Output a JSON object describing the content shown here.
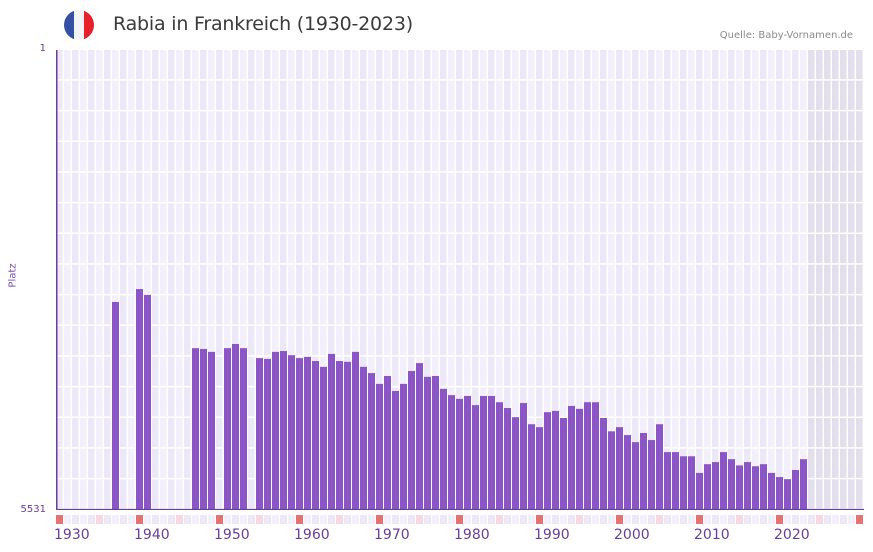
{
  "header": {
    "title": "Rabia in Frankreich (1930-2023)",
    "source": "Quelle: Baby-Vornamen.de",
    "flag_icon": "france-flag-icon",
    "flag_colors": [
      "#3450a3",
      "#f4f4f6",
      "#e8202a"
    ]
  },
  "colors": {
    "bar": "#8b55c8",
    "axis": "#6a3d9a",
    "grid_bg_a": "#f3f0fb",
    "grid_bg_b": "#ece8f7",
    "future_bg": "#e3dfec",
    "decade_marker": "#e57373",
    "half_decade_marker": "#f6d9e0"
  },
  "axes": {
    "y_title": "Platz",
    "y_top_label": "1",
    "y_bottom_label": "5531",
    "x_tick_labels": [
      "1930",
      "1940",
      "1950",
      "1960",
      "1970",
      "1980",
      "1990",
      "2000",
      "2010",
      "2020"
    ]
  },
  "chart_data": {
    "type": "bar",
    "title": "Rabia in Frankreich (1930-2023)",
    "xlabel": "",
    "ylabel": "Platz",
    "y_inverted": true,
    "ylim": [
      5531,
      1
    ],
    "xlim": [
      1930,
      2030
    ],
    "grid": true,
    "future_shading_from": 2024,
    "categories": [
      1937,
      1940,
      1941,
      1947,
      1948,
      1949,
      1951,
      1952,
      1953,
      1955,
      1956,
      1957,
      1958,
      1959,
      1960,
      1961,
      1962,
      1963,
      1964,
      1965,
      1966,
      1967,
      1968,
      1969,
      1970,
      1971,
      1972,
      1973,
      1974,
      1975,
      1976,
      1977,
      1978,
      1979,
      1980,
      1981,
      1982,
      1983,
      1984,
      1985,
      1986,
      1987,
      1988,
      1989,
      1990,
      1991,
      1992,
      1993,
      1994,
      1995,
      1996,
      1997,
      1998,
      1999,
      2000,
      2001,
      2002,
      2003,
      2004,
      2005,
      2006,
      2007,
      2008,
      2009,
      2010,
      2011,
      2012,
      2013,
      2014,
      2015,
      2016,
      2017,
      2018,
      2019,
      2020,
      2021,
      2022,
      2023
    ],
    "values": [
      3030,
      2875,
      2945,
      3585,
      3595,
      3630,
      3585,
      3535,
      3585,
      3705,
      3715,
      3630,
      3620,
      3670,
      3705,
      3690,
      3740,
      3810,
      3655,
      3740,
      3750,
      3630,
      3810,
      3885,
      4015,
      3920,
      4100,
      4015,
      3860,
      3765,
      3930,
      3920,
      4075,
      4150,
      4195,
      4160,
      4270,
      4160,
      4160,
      4235,
      4305,
      4415,
      4245,
      4500,
      4535,
      4355,
      4340,
      4425,
      4280,
      4315,
      4235,
      4235,
      4425,
      4585,
      4535,
      4630,
      4715,
      4605,
      4690,
      4500,
      4835,
      4835,
      4885,
      4885,
      5085,
      4980,
      4955,
      4835,
      4920,
      4995,
      4955,
      5005,
      4980,
      5085,
      5135,
      5160,
      5050,
      4920
    ]
  }
}
